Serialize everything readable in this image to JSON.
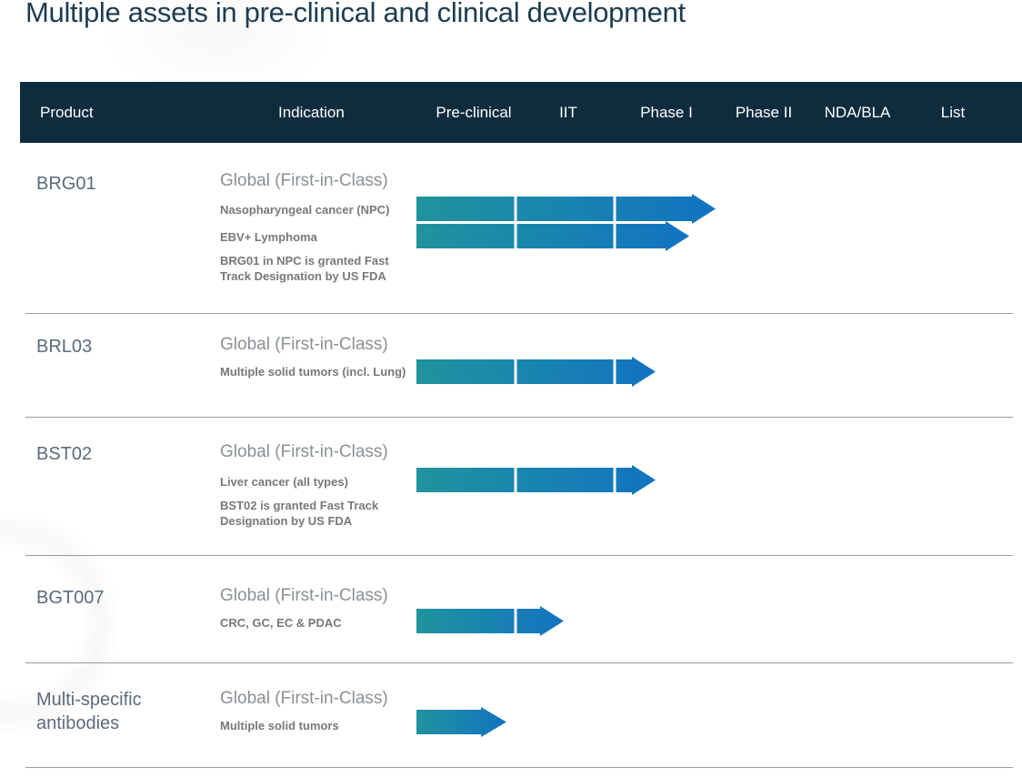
{
  "title": "Multiple assets in pre-clinical and clinical development",
  "colors": {
    "header_bg": "#0f2c3e",
    "header_text": "#ffffff",
    "arrow_gradient_start": "#21939e",
    "arrow_gradient_end": "#1173c1",
    "title_text": "#1d3c50",
    "product_text": "#5b6b7c",
    "scope_text": "#8a9096",
    "detail_text": "#76787a",
    "divider": "#9a9a9a"
  },
  "header": {
    "columns": [
      {
        "label": "Product"
      },
      {
        "label": "Indication"
      },
      {
        "label": "Pre-clinical"
      },
      {
        "label": "IIT"
      },
      {
        "label": "Phase I"
      },
      {
        "label": "Phase II"
      },
      {
        "label": "NDA/BLA"
      },
      {
        "label": "List"
      }
    ]
  },
  "chart_data": {
    "type": "table",
    "subtype": "drug-development-pipeline-gantt",
    "title": "Multiple assets in pre-clinical and clinical development",
    "phases": [
      "Pre-clinical",
      "IIT",
      "Phase I",
      "Phase II",
      "NDA/BLA",
      "List"
    ],
    "legend_position": "none",
    "rows": [
      {
        "product": "BRG01",
        "scope": "Global (First-in-Class)",
        "programs": [
          {
            "indication": "Nasopharyngeal cancer (NPC)",
            "reached_phase": "Phase I",
            "progress": "completed Phase I band",
            "arrow": {
              "total": 329,
              "head": 26,
              "boundaries": [
                109,
                218
              ]
            }
          },
          {
            "indication": "EBV+ Lymphoma",
            "reached_phase": "Phase I",
            "progress": "most of Phase I band",
            "arrow": {
              "total": 300,
              "head": 26,
              "boundaries": [
                109,
                218
              ]
            }
          }
        ],
        "note": "BRG01 in NPC is granted Fast Track Designation by US FDA"
      },
      {
        "product": "BRL03",
        "scope": "Global (First-in-Class)",
        "programs": [
          {
            "indication": "Multiple solid tumors (incl. Lung)",
            "reached_phase": "Phase I",
            "progress": "entering Phase I",
            "arrow": {
              "total": 263,
              "head": 26,
              "boundaries": [
                109,
                218
              ]
            }
          }
        ],
        "note": ""
      },
      {
        "product": "BST02",
        "scope": "Global (First-in-Class)",
        "programs": [
          {
            "indication": "Liver cancer (all types)",
            "reached_phase": "Phase I",
            "progress": "entering Phase I",
            "arrow": {
              "total": 263,
              "head": 26,
              "boundaries": [
                109,
                218
              ]
            }
          }
        ],
        "note": "BST02 is granted Fast Track Designation by US FDA"
      },
      {
        "product": "BGT007",
        "scope": "Global (First-in-Class)",
        "programs": [
          {
            "indication": "CRC, GC, EC & PDAC",
            "reached_phase": "IIT",
            "progress": "entering IIT",
            "arrow": {
              "total": 162,
              "head": 26,
              "boundaries": [
                109
              ]
            }
          }
        ],
        "note": ""
      },
      {
        "product": "Multi-specific antibodies",
        "scope": "Global (First-in-Class)",
        "programs": [
          {
            "indication": "Multiple solid tumors",
            "reached_phase": "Pre-clinical",
            "progress": "mid Pre-clinical",
            "arrow": {
              "total": 99,
              "head": 28,
              "boundaries": []
            }
          }
        ],
        "note": ""
      }
    ]
  }
}
